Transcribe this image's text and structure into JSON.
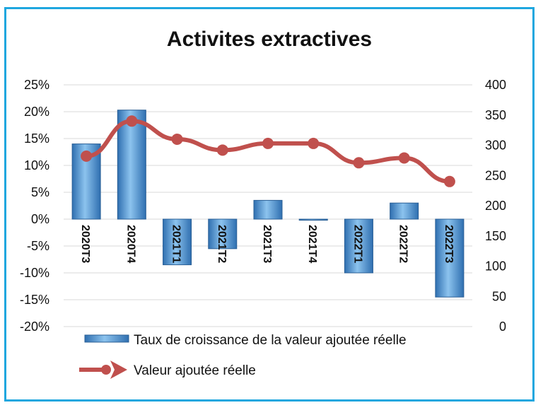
{
  "chart_data": {
    "type": "bar+line",
    "title": "Activites extractives",
    "categories": [
      "2020T3",
      "2020T4",
      "2021T1",
      "2021T2",
      "2021T3",
      "2021T4",
      "2022T1",
      "2022T2",
      "2022T3"
    ],
    "series": [
      {
        "name": "Taux de croissance de la valeur ajoutée réelle",
        "type": "bar",
        "axis": "left",
        "values": [
          14,
          20.3,
          -8.5,
          -5.5,
          3.5,
          -0.2,
          -10,
          3,
          -14.5
        ],
        "color": "#5b9bd5"
      },
      {
        "name": "Valeur ajoutée réelle",
        "type": "line",
        "axis": "right",
        "values": [
          282,
          340,
          310,
          292,
          303,
          303,
          271,
          279,
          240
        ],
        "color": "#c0504d"
      }
    ],
    "y_left": {
      "min": -20,
      "max": 25,
      "step": 5,
      "tick_labels": [
        "-20%",
        "-15%",
        "-10%",
        "-5%",
        "0%",
        "5%",
        "10%",
        "15%",
        "20%",
        "25%"
      ]
    },
    "y_right": {
      "min": 0,
      "max": 400,
      "step": 50,
      "tick_labels": [
        "0",
        "50",
        "100",
        "150",
        "200",
        "250",
        "300",
        "350",
        "400"
      ]
    },
    "grid": true,
    "legend_position": "bottom"
  }
}
